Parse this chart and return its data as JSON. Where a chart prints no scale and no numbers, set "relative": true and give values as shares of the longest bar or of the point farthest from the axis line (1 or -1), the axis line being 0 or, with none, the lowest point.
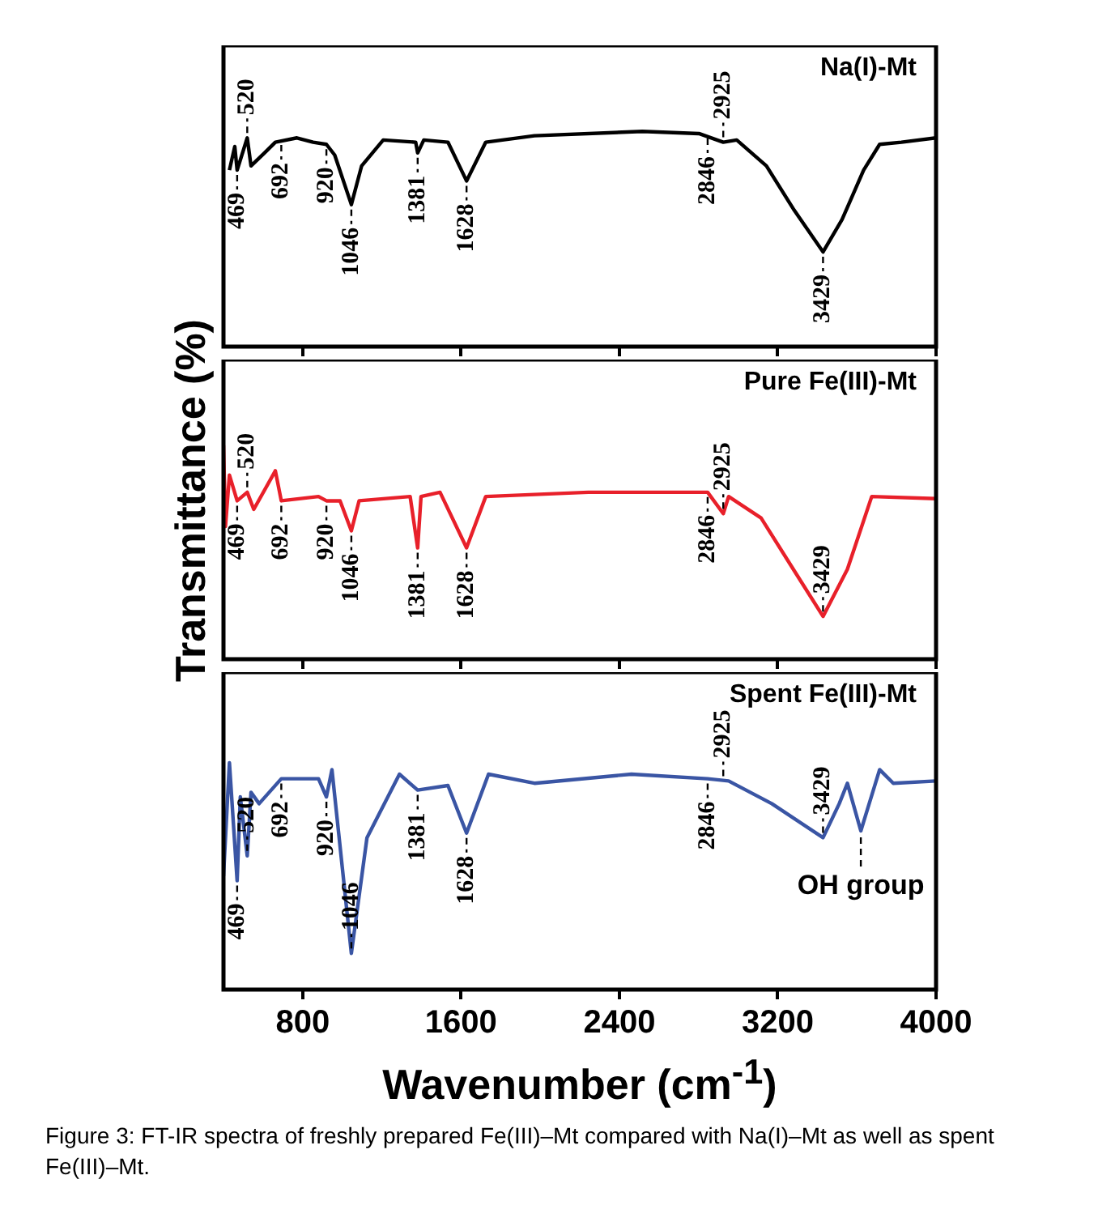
{
  "chart_data": [
    {
      "type": "line",
      "relative": true,
      "tick_labels": false,
      "xlim": [
        400,
        4000
      ],
      "xticks": [
        800,
        1600,
        2400,
        3200,
        4000
      ],
      "series": [
        {
          "name": "Na(I)-Mt",
          "color": "#000000",
          "x": [
            430,
            457,
            469,
            520,
            539,
            607,
            662,
            771,
            853,
            920,
            962,
            1046,
            1098,
            1207,
            1371,
            1381,
            1412,
            1534,
            1628,
            1725,
            1971,
            2516,
            2802,
            2925,
            2993,
            3143,
            3279,
            3429,
            3525,
            3634,
            3715,
            3825,
            4000
          ],
          "values": [
            0.82,
            0.93,
            0.82,
            0.97,
            0.84,
            0.9,
            0.95,
            0.97,
            0.95,
            0.94,
            0.89,
            0.66,
            0.84,
            0.96,
            0.95,
            0.9,
            0.96,
            0.95,
            0.77,
            0.95,
            0.98,
            1,
            0.99,
            0.95,
            0.96,
            0.84,
            0.64,
            0.44,
            0.59,
            0.82,
            0.94,
            0.95,
            0.97
          ]
        }
      ],
      "annotations": [
        {
          "text": "469",
          "x": 469,
          "y": 0.82
        },
        {
          "text": "520",
          "x": 520,
          "y": 0.97
        },
        {
          "text": "692",
          "x": 692,
          "y": 0.96
        },
        {
          "text": "920",
          "x": 920,
          "y": 0.94
        },
        {
          "text": "1046",
          "x": 1046,
          "y": 0.66
        },
        {
          "text": "1381",
          "x": 1381,
          "y": 0.9
        },
        {
          "text": "1628",
          "x": 1628,
          "y": 0.77
        },
        {
          "text": "2846",
          "x": 2846,
          "y": 0.99
        },
        {
          "text": "2925",
          "x": 2925,
          "y": 0.95
        },
        {
          "text": "3429",
          "x": 3429,
          "y": 0.44
        }
      ]
    },
    {
      "type": "line",
      "relative": true,
      "tick_labels": false,
      "xlim": [
        400,
        4000
      ],
      "xticks": [
        800,
        1600,
        2400,
        3200,
        4000
      ],
      "ylabel": "Transmittance (%)",
      "series": [
        {
          "name": "Pure Fe(III)-Mt",
          "color": "#e8202a",
          "x": [
            400,
            410,
            430,
            469,
            520,
            553,
            662,
            692,
            880,
            920,
            989,
            1046,
            1085,
            1343,
            1381,
            1398,
            1494,
            1628,
            1725,
            2243,
            2846,
            2925,
            2952,
            3116,
            3279,
            3429,
            3552,
            3675,
            4000
          ],
          "values": [
            1,
            0.62,
            0.86,
            0.74,
            0.78,
            0.7,
            0.88,
            0.74,
            0.76,
            0.74,
            0.74,
            0.6,
            0.74,
            0.76,
            0.52,
            0.76,
            0.78,
            0.52,
            0.76,
            0.78,
            0.78,
            0.68,
            0.76,
            0.66,
            0.42,
            0.2,
            0.42,
            0.76,
            0.75
          ]
        }
      ],
      "annotations": [
        {
          "text": "469",
          "x": 469,
          "y": 0.74
        },
        {
          "text": "520",
          "x": 520,
          "y": 0.78
        },
        {
          "text": "692",
          "x": 692,
          "y": 0.74
        },
        {
          "text": "920",
          "x": 920,
          "y": 0.74
        },
        {
          "text": "1046",
          "x": 1046,
          "y": 0.6
        },
        {
          "text": "1381",
          "x": 1381,
          "y": 0.52
        },
        {
          "text": "1628",
          "x": 1628,
          "y": 0.52
        },
        {
          "text": "2846",
          "x": 2846,
          "y": 0.78
        },
        {
          "text": "2925",
          "x": 2925,
          "y": 0.68
        },
        {
          "text": "3429",
          "x": 3429,
          "y": 0.2
        }
      ]
    },
    {
      "type": "line",
      "relative": true,
      "tick_labels": "x",
      "xlim": [
        400,
        4000
      ],
      "xticks": [
        800,
        1600,
        2400,
        3200,
        4000
      ],
      "xlabel": "Wavenumber (cm$^{-1}$)",
      "series": [
        {
          "name": "Spent Fe(III)-Mt",
          "color": "#3a55a4",
          "x": [
            400,
            430,
            469,
            485,
            520,
            539,
            580,
            692,
            880,
            920,
            948,
            1046,
            1125,
            1289,
            1381,
            1534,
            1628,
            1739,
            1971,
            2461,
            2846,
            2952,
            3170,
            3429,
            3511,
            3552,
            3620,
            3715,
            3784,
            4000
          ],
          "values": [
            0.5,
            1,
            0.48,
            0.85,
            0.59,
            0.87,
            0.82,
            0.93,
            0.93,
            0.85,
            0.97,
            0.16,
            0.67,
            0.95,
            0.88,
            0.9,
            0.69,
            0.95,
            0.91,
            0.95,
            0.93,
            0.92,
            0.82,
            0.67,
            0.82,
            0.91,
            0.7,
            0.97,
            0.91,
            0.92
          ]
        }
      ],
      "annotations": [
        {
          "text": "469",
          "x": 469,
          "y": 0.48
        },
        {
          "text": "520",
          "x": 520,
          "y": 0.59
        },
        {
          "text": "692",
          "x": 692,
          "y": 0.93
        },
        {
          "text": "920",
          "x": 920,
          "y": 0.85
        },
        {
          "text": "1046",
          "x": 1046,
          "y": 0.16
        },
        {
          "text": "1381",
          "x": 1381,
          "y": 0.88
        },
        {
          "text": "1628",
          "x": 1628,
          "y": 0.69
        },
        {
          "text": "2846",
          "x": 2846,
          "y": 0.93
        },
        {
          "text": "2925",
          "x": 2925,
          "y": 0.92
        },
        {
          "text": "3429",
          "x": 3429,
          "y": 0.67
        },
        {
          "text": "OH group",
          "x": 3620,
          "y": 0.7
        },
        "Figure 3: FT-IR spectra of freshly prepared Fe(III)–Mt compared with Na(I)–Mt as well as spent Fe(III)–Mt."
      ]
    }
  ]
}
